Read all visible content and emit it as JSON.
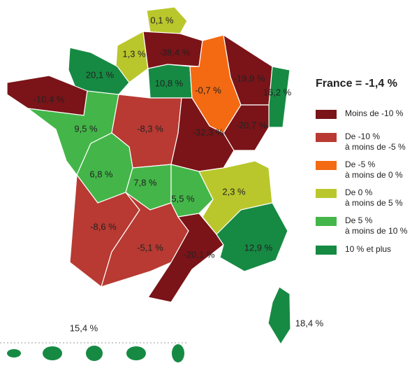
{
  "title": "France = -1,4 %",
  "legend": [
    {
      "lines": [
        "Moins de -10 %"
      ],
      "color": "#7a1418"
    },
    {
      "lines": [
        "De -10 %",
        "à moins de -5 %"
      ],
      "color": "#b83a32"
    },
    {
      "lines": [
        "De -5 %",
        "à moins de 0 %"
      ],
      "color": "#f36a12"
    },
    {
      "lines": [
        "De 0 %",
        "à moins de 5 %"
      ],
      "color": "#bac72c"
    },
    {
      "lines": [
        "De 5 %",
        "à moins de 10 %"
      ],
      "color": "#44b649"
    },
    {
      "lines": [
        "10 % et plus"
      ],
      "color": "#168a43"
    }
  ],
  "regions": [
    {
      "label": "0,1 %",
      "color": "#bac72c"
    },
    {
      "label": "1,3 %",
      "color": "#bac72c"
    },
    {
      "label": "-38,4 %",
      "color": "#7a1418"
    },
    {
      "label": "20,1 %",
      "color": "#168a43"
    },
    {
      "label": "10,8 %",
      "color": "#168a43"
    },
    {
      "label": "-0,7 %",
      "color": "#f36a12"
    },
    {
      "label": "-19,9 %",
      "color": "#7a1418"
    },
    {
      "label": "16,2 %",
      "color": "#168a43"
    },
    {
      "label": "-10,4 %",
      "color": "#7a1418"
    },
    {
      "label": "9,5 %",
      "color": "#44b649"
    },
    {
      "label": "-8,3 %",
      "color": "#b83a32"
    },
    {
      "label": "-32,3 %",
      "color": "#7a1418"
    },
    {
      "label": "-20,7 %",
      "color": "#7a1418"
    },
    {
      "label": "6,8 %",
      "color": "#44b649"
    },
    {
      "label": "7,8 %",
      "color": "#44b649"
    },
    {
      "label": "5,5 %",
      "color": "#44b649"
    },
    {
      "label": "2,3 %",
      "color": "#bac72c"
    },
    {
      "label": "-8,6 %",
      "color": "#b83a32"
    },
    {
      "label": "-5,1 %",
      "color": "#b83a32"
    },
    {
      "label": "-20,1 %",
      "color": "#7a1418"
    },
    {
      "label": "12,9 %",
      "color": "#168a43"
    },
    {
      "label": "18,4 %",
      "color": "#168a43"
    }
  ],
  "overseas": {
    "label": "15,4 %",
    "color": "#168a43"
  }
}
